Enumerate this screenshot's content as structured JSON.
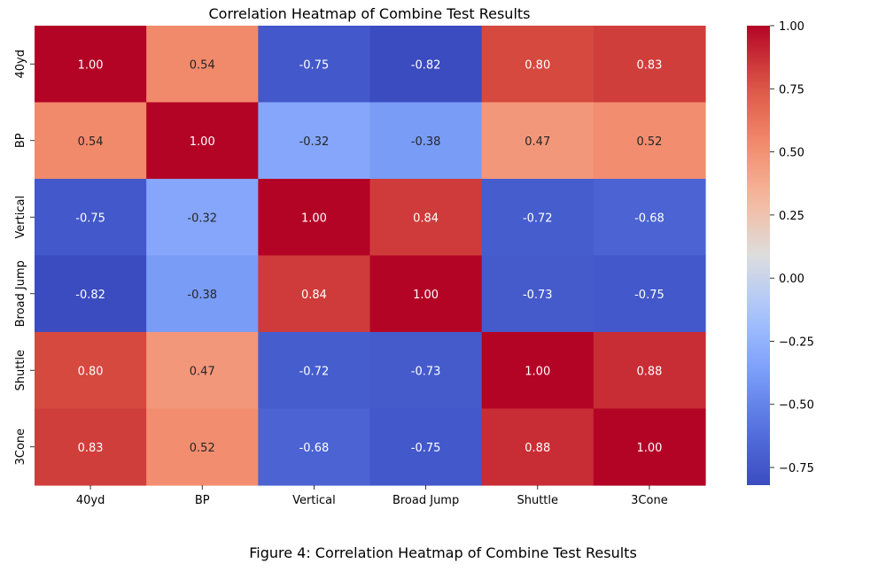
{
  "chart_data": {
    "type": "heatmap",
    "title": "Correlation Heatmap of Combine Test Results",
    "x_labels": [
      "40yd",
      "BP",
      "Vertical",
      "Broad Jump",
      "Shuttle",
      "3Cone"
    ],
    "y_labels": [
      "40yd",
      "BP",
      "Vertical",
      "Broad Jump",
      "Shuttle",
      "3Cone"
    ],
    "values": [
      [
        1.0,
        0.54,
        -0.75,
        -0.82,
        0.8,
        0.83
      ],
      [
        0.54,
        1.0,
        -0.32,
        -0.38,
        0.47,
        0.52
      ],
      [
        -0.75,
        -0.32,
        1.0,
        0.84,
        -0.72,
        -0.68
      ],
      [
        -0.82,
        -0.38,
        0.84,
        1.0,
        -0.73,
        -0.75
      ],
      [
        0.8,
        0.47,
        -0.72,
        -0.73,
        1.0,
        0.88
      ],
      [
        0.83,
        0.52,
        -0.68,
        -0.75,
        0.88,
        1.0
      ]
    ],
    "cell_labels": [
      [
        "1.00",
        "0.54",
        "-0.75",
        "-0.82",
        "0.80",
        "0.83"
      ],
      [
        "0.54",
        "1.00",
        "-0.32",
        "-0.38",
        "0.47",
        "0.52"
      ],
      [
        "-0.75",
        "-0.32",
        "1.00",
        "0.84",
        "-0.72",
        "-0.68"
      ],
      [
        "-0.82",
        "-0.38",
        "0.84",
        "1.00",
        "-0.73",
        "-0.75"
      ],
      [
        "0.80",
        "0.47",
        "-0.72",
        "-0.73",
        "1.00",
        "0.88"
      ],
      [
        "0.83",
        "0.52",
        "-0.68",
        "-0.75",
        "0.88",
        "1.00"
      ]
    ],
    "colormap": "coolwarm",
    "vmin": -0.82,
    "vmax": 1.0,
    "colorbar_ticks": [
      1.0,
      0.75,
      0.5,
      0.25,
      0.0,
      -0.25,
      -0.5,
      -0.75
    ],
    "colorbar_tick_labels": [
      "1.00",
      "0.75",
      "0.50",
      "0.25",
      "0.00",
      "−0.25",
      "−0.50",
      "−0.75"
    ],
    "legend_position": "right",
    "colors": {
      "low": "#3b4cc0",
      "mid": "#dddddd",
      "high": "#b40426"
    }
  },
  "caption": "Figure 4: Correlation Heatmap of Combine Test Results"
}
